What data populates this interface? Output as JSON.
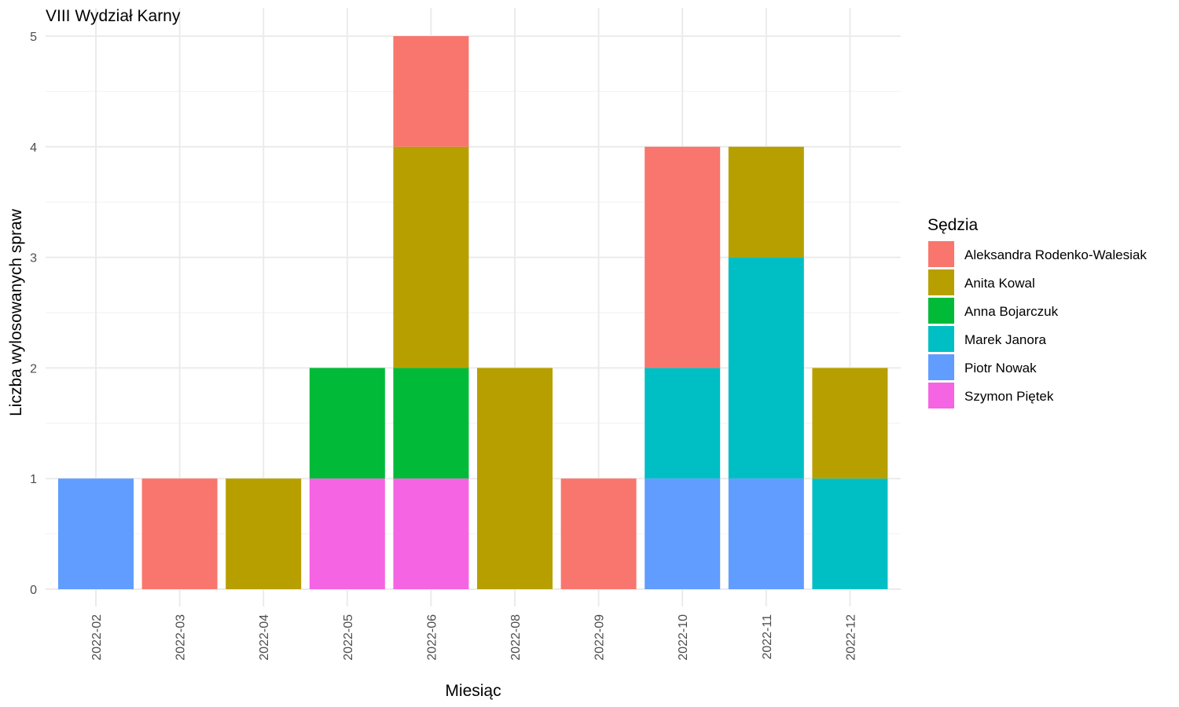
{
  "chart_data": {
    "type": "bar",
    "stacked": true,
    "title": "VIII Wydział Karny",
    "xlabel": "Miesiąc",
    "ylabel": "Liczba wylosowanych spraw",
    "ylim": [
      0,
      5
    ],
    "y_ticks": [
      "0",
      "1",
      "2",
      "3",
      "4",
      "5"
    ],
    "grid": true,
    "legend_position": "right",
    "legend_title": "Sędzia",
    "categories": [
      "2022-02",
      "2022-03",
      "2022-04",
      "2022-05",
      "2022-06",
      "2022-08",
      "2022-09",
      "2022-10",
      "2022-11",
      "2022-12"
    ],
    "series": [
      {
        "name": "Aleksandra Rodenko-Walesiak",
        "color": "#F8766D",
        "values": [
          0,
          1,
          0,
          0,
          1,
          0,
          1,
          2,
          0,
          0
        ]
      },
      {
        "name": "Anita Kowal",
        "color": "#B79F00",
        "values": [
          0,
          0,
          1,
          0,
          2,
          2,
          0,
          0,
          1,
          1
        ]
      },
      {
        "name": "Anna Bojarczuk",
        "color": "#00BA38",
        "values": [
          0,
          0,
          0,
          1,
          1,
          0,
          0,
          0,
          0,
          0
        ]
      },
      {
        "name": "Marek Janora",
        "color": "#00BFC4",
        "values": [
          0,
          0,
          0,
          0,
          0,
          0,
          0,
          1,
          2,
          1
        ]
      },
      {
        "name": "Piotr Nowak",
        "color": "#619CFF",
        "values": [
          1,
          0,
          0,
          0,
          0,
          0,
          0,
          1,
          1,
          0
        ]
      },
      {
        "name": "Szymon Piętek",
        "color": "#F564E3",
        "values": [
          0,
          0,
          0,
          1,
          1,
          0,
          0,
          0,
          0,
          0
        ]
      }
    ]
  }
}
